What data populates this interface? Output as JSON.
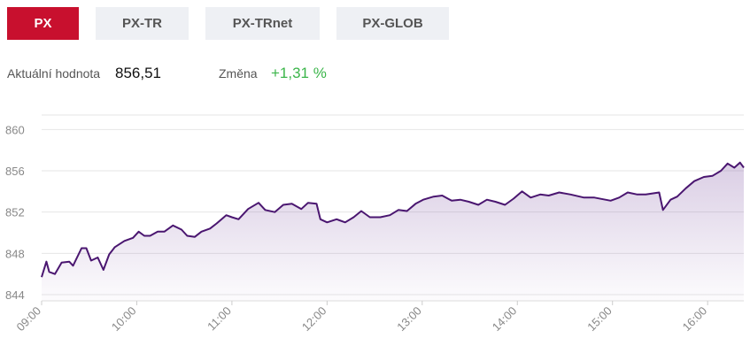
{
  "tabs": [
    "PX",
    "PX-TR",
    "PX-TRnet",
    "PX-GLOB"
  ],
  "stats": [
    {
      "label": "Aktuální hodnota",
      "value": "856,51"
    },
    {
      "label": "Změna",
      "value": "+1,31 %"
    }
  ],
  "chart_data": {
    "type": "line",
    "x": [
      9.0,
      9.05,
      9.08,
      9.14,
      9.21,
      9.29,
      9.33,
      9.42,
      9.47,
      9.52,
      9.59,
      9.65,
      9.71,
      9.77,
      9.87,
      9.96,
      10.02,
      10.08,
      10.14,
      10.22,
      10.29,
      10.38,
      10.47,
      10.53,
      10.61,
      10.68,
      10.77,
      10.84,
      10.94,
      11.0,
      11.07,
      11.17,
      11.28,
      11.35,
      11.45,
      11.54,
      11.63,
      11.73,
      11.8,
      11.89,
      11.93,
      12.0,
      12.1,
      12.19,
      12.28,
      12.36,
      12.45,
      12.56,
      12.66,
      12.75,
      12.84,
      12.93,
      13.01,
      13.12,
      13.21,
      13.31,
      13.4,
      13.49,
      13.59,
      13.68,
      13.77,
      13.87,
      13.96,
      14.05,
      14.14,
      14.24,
      14.33,
      14.44,
      14.56,
      14.7,
      14.81,
      14.98,
      15.07,
      15.16,
      15.26,
      15.35,
      15.49,
      15.53,
      15.61,
      15.68,
      15.77,
      15.86,
      15.96,
      16.05,
      16.14,
      16.21,
      16.28,
      16.34,
      16.38
    ],
    "values": [
      845.7,
      847.2,
      846.2,
      846.0,
      847.1,
      847.2,
      846.8,
      848.5,
      848.5,
      847.3,
      847.6,
      846.4,
      847.9,
      848.6,
      849.2,
      849.5,
      850.1,
      849.7,
      849.7,
      850.1,
      850.1,
      850.7,
      850.3,
      849.7,
      849.6,
      850.1,
      850.4,
      850.9,
      851.7,
      851.5,
      851.3,
      852.3,
      852.9,
      852.2,
      852.0,
      852.7,
      852.8,
      852.3,
      852.9,
      852.8,
      851.3,
      851.0,
      851.3,
      851.0,
      851.5,
      852.1,
      851.5,
      851.5,
      851.7,
      852.2,
      852.1,
      852.8,
      853.2,
      853.5,
      853.6,
      853.1,
      853.2,
      853.0,
      852.7,
      853.2,
      853.0,
      852.7,
      853.3,
      854.0,
      853.4,
      853.7,
      853.6,
      853.9,
      853.7,
      853.4,
      853.4,
      853.1,
      853.4,
      853.9,
      853.7,
      853.7,
      853.9,
      852.2,
      853.2,
      853.5,
      854.3,
      855.0,
      855.4,
      855.5,
      856.0,
      856.7,
      856.3,
      856.8,
      856.3
    ],
    "color": "#4a1670",
    "xlim": [
      9,
      16.38
    ],
    "xticks": [
      {
        "value": 9,
        "label": "09:00"
      },
      {
        "value": 10,
        "label": "10:00"
      },
      {
        "value": 11,
        "label": "11:00"
      },
      {
        "value": 12,
        "label": "12:00"
      },
      {
        "value": 13,
        "label": "13:00"
      },
      {
        "value": 14,
        "label": "14:00"
      },
      {
        "value": 15,
        "label": "15:00"
      },
      {
        "value": 16,
        "label": "16:00"
      }
    ],
    "ylim": [
      843.4,
      861.4
    ],
    "yticks": [
      844,
      848,
      852,
      856,
      860
    ],
    "grid": true
  }
}
